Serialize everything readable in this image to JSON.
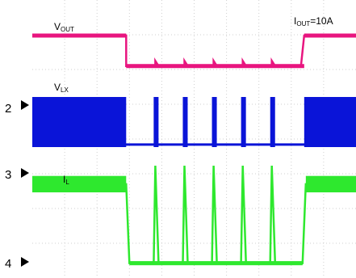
{
  "chart_data": {
    "type": "line",
    "title": "",
    "xlabel": "",
    "ylabel": "",
    "annotation": {
      "main": "I",
      "sub": "OUT",
      "suffix": "=10A"
    },
    "grid": true,
    "channel_markers": [
      "2",
      "3",
      "4"
    ],
    "series": [
      {
        "name": "VOUT",
        "label_main": "V",
        "label_sub": "OUT",
        "color": "#e8157f",
        "style": "step",
        "ylim": [
          0,
          1
        ],
        "points": [
          [
            0,
            1
          ],
          [
            0.29,
            1
          ],
          [
            0.29,
            0.18
          ],
          [
            0.38,
            0.18
          ],
          [
            0.38,
            0.32
          ],
          [
            0.39,
            0.18
          ],
          [
            0.47,
            0.18
          ],
          [
            0.47,
            0.32
          ],
          [
            0.48,
            0.18
          ],
          [
            0.56,
            0.18
          ],
          [
            0.56,
            0.32
          ],
          [
            0.57,
            0.18
          ],
          [
            0.65,
            0.18
          ],
          [
            0.65,
            0.32
          ],
          [
            0.66,
            0.18
          ],
          [
            0.74,
            0.18
          ],
          [
            0.74,
            0.32
          ],
          [
            0.75,
            0.18
          ],
          [
            0.83,
            0.18
          ],
          [
            0.84,
            1
          ],
          [
            1,
            1
          ]
        ]
      },
      {
        "name": "VLX",
        "label_main": "V",
        "label_sub": "LX",
        "color": "#0a14d8",
        "style": "band",
        "ylim": [
          0,
          1
        ],
        "segments": [
          {
            "x": [
              0,
              0.29
            ],
            "low": 0,
            "high": 1
          },
          {
            "x": [
              0.375,
              0.39
            ],
            "low": 0,
            "high": 1
          },
          {
            "x": [
              0.465,
              0.48
            ],
            "low": 0,
            "high": 1
          },
          {
            "x": [
              0.555,
              0.57
            ],
            "low": 0,
            "high": 1
          },
          {
            "x": [
              0.645,
              0.66
            ],
            "low": 0,
            "high": 1
          },
          {
            "x": [
              0.735,
              0.75
            ],
            "low": 0,
            "high": 1
          },
          {
            "x": [
              0.84,
              1
            ],
            "low": 0,
            "high": 1
          }
        ],
        "baseline": 0.05
      },
      {
        "name": "IL",
        "label_main": "I",
        "label_sub": "L",
        "color": "#2ee82e",
        "style": "ripple",
        "ylim": [
          0,
          1
        ],
        "points": [
          [
            0,
            0.82
          ],
          [
            0.29,
            0.82
          ],
          [
            0.3,
            0.05
          ],
          [
            0.375,
            0.05
          ],
          [
            0.38,
            1
          ],
          [
            0.39,
            0.05
          ],
          [
            0.465,
            0.05
          ],
          [
            0.47,
            1
          ],
          [
            0.48,
            0.05
          ],
          [
            0.555,
            0.05
          ],
          [
            0.56,
            1
          ],
          [
            0.57,
            0.05
          ],
          [
            0.645,
            0.05
          ],
          [
            0.65,
            1
          ],
          [
            0.66,
            0.05
          ],
          [
            0.735,
            0.05
          ],
          [
            0.74,
            1
          ],
          [
            0.75,
            0.05
          ],
          [
            0.835,
            0.05
          ],
          [
            0.845,
            0.82
          ],
          [
            1,
            0.82
          ]
        ],
        "ripple": 0.08
      }
    ]
  }
}
